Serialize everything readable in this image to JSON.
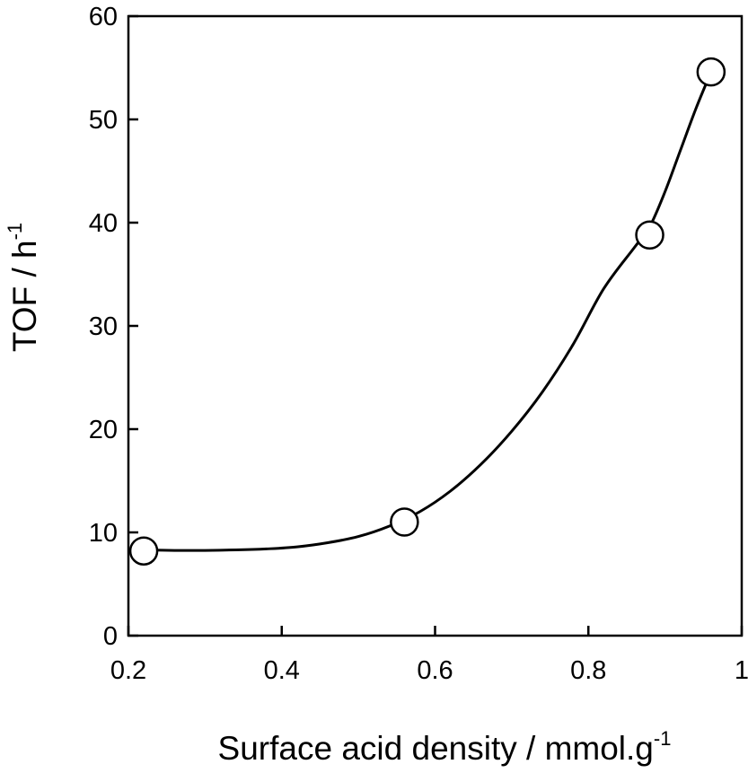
{
  "chart_data": {
    "type": "scatter",
    "xlabel": "Surface acid density / mmol.g",
    "xlabel_superscript": "-1",
    "ylabel": "TOF / h",
    "ylabel_superscript": "-1",
    "xlim": [
      0.2,
      1.0
    ],
    "ylim": [
      0,
      60
    ],
    "x_ticks": [
      0.2,
      0.4,
      0.6,
      0.8,
      1.0
    ],
    "x_tick_labels": [
      "0.2",
      "0.4",
      "0.6",
      "0.8",
      "1"
    ],
    "y_ticks": [
      0,
      10,
      20,
      30,
      40,
      50,
      60
    ],
    "y_tick_labels": [
      "0",
      "10",
      "20",
      "30",
      "40",
      "50",
      "60"
    ],
    "grid": false,
    "series": [
      {
        "marker": "open-circle",
        "x": [
          0.22,
          0.56,
          0.88,
          0.96
        ],
        "y": [
          8.2,
          11.0,
          38.8,
          54.6
        ]
      }
    ],
    "trend_curve": {
      "x": [
        0.22,
        0.26,
        0.3,
        0.34,
        0.38,
        0.42,
        0.46,
        0.5,
        0.54,
        0.58,
        0.62,
        0.66,
        0.7,
        0.74,
        0.78,
        0.82,
        0.86,
        0.88,
        0.9,
        0.92,
        0.94,
        0.96
      ],
      "y": [
        8.3,
        8.25,
        8.25,
        8.3,
        8.4,
        8.6,
        9.0,
        9.6,
        10.6,
        12.0,
        14.0,
        16.6,
        19.8,
        23.6,
        28.2,
        33.6,
        37.6,
        39.6,
        43.0,
        47.0,
        51.0,
        54.6
      ]
    },
    "colors": {
      "line": "#000000",
      "marker_fill": "#ffffff",
      "marker_stroke": "#000000"
    }
  }
}
